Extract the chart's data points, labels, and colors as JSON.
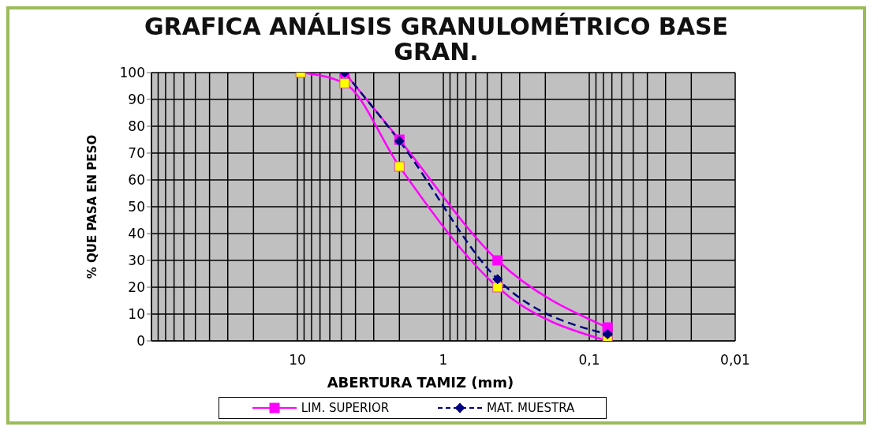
{
  "chart_data": {
    "type": "line",
    "title": "GRAFICA ANÁLISIS GRANULOMÉTRICO BASE GRAN.",
    "xlabel": "ABERTURA TAMIZ (mm)",
    "ylabel": "% QUE PASA EN PESO",
    "log": "x",
    "grid": true,
    "legend": "bottom",
    "marker": "square",
    "xlim": [
      100,
      0.01
    ],
    "xticks": [
      {
        "value": 10,
        "label": "10"
      },
      {
        "value": 1,
        "label": "1"
      },
      {
        "value": 0.1,
        "label": "0,1"
      },
      {
        "value": 0.01,
        "label": "0,01"
      }
    ],
    "ylim": [
      0,
      100
    ],
    "yticks": [
      0,
      10,
      20,
      30,
      40,
      50,
      60,
      70,
      80,
      90,
      100
    ],
    "series": [
      {
        "name": "LIM. SUPERIOR",
        "color": "#ff00ff",
        "line_style": "solid",
        "x": [
          4.75,
          2,
          0.425,
          0.075
        ],
        "values": [
          100,
          75,
          30,
          5
        ]
      },
      {
        "color": "#ff00ff",
        "colors": [
          "#ffff00",
          "#ffff00",
          "#ffff00",
          "#ffff00",
          "#ffff00"
        ],
        "line_style": "solid",
        "x": [
          9.5,
          4.75,
          2,
          0.425,
          0.075
        ],
        "values": [
          100,
          96,
          65,
          20,
          0
        ]
      },
      {
        "name": "MAT. MUESTRA",
        "color": "#000080",
        "marker": "diamond",
        "line_style": "dashed",
        "x": [
          4.75,
          2,
          0.425,
          0.075
        ],
        "values": [
          100,
          74.5,
          23,
          2.5
        ]
      }
    ]
  }
}
